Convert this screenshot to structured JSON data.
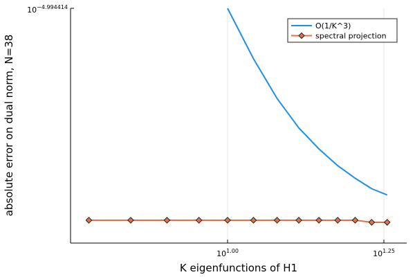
{
  "chart_data": {
    "type": "line",
    "xscale": "log10",
    "yscale": "log10",
    "xlabel": "K eigenfunctions of H1",
    "ylabel": "absolute error on dual norm, N=38",
    "x_ticks": [
      {
        "value": 10.0,
        "base": "10",
        "exp": "1.00"
      },
      {
        "value": 17.7828,
        "base": "10",
        "exp": "1.25"
      }
    ],
    "y_ticks": [
      {
        "value": 1.0129e-05,
        "base": "10",
        "exp": "−4.994414"
      }
    ],
    "grid": true,
    "legend": "top-right",
    "series": [
      {
        "name": "O(1/K^3)",
        "color": "#1f8fe0",
        "marker": "none",
        "x": [
          10,
          11,
          12,
          13,
          14,
          15,
          16,
          17,
          18
        ],
        "y": [
          1.0129e-05,
          1.01266e-05,
          1.01247e-05,
          1.01233e-05,
          1.01223e-05,
          1.01215e-05,
          1.01209e-05,
          1.01204e-05,
          1.01201e-05
        ]
      },
      {
        "name": "spectral projection",
        "color": "#e26f46",
        "marker": "diamond",
        "x": [
          6,
          7,
          8,
          9,
          10,
          11,
          12,
          13,
          14,
          15,
          16,
          17,
          18
        ],
        "y": [
          1.01189e-05,
          1.01189e-05,
          1.01189e-05,
          1.01189e-05,
          1.01189e-05,
          1.01189e-05,
          1.01189e-05,
          1.01189e-05,
          1.01189e-05,
          1.01189e-05,
          1.01189e-05,
          1.01188e-05,
          1.01188e-05
        ]
      }
    ]
  }
}
